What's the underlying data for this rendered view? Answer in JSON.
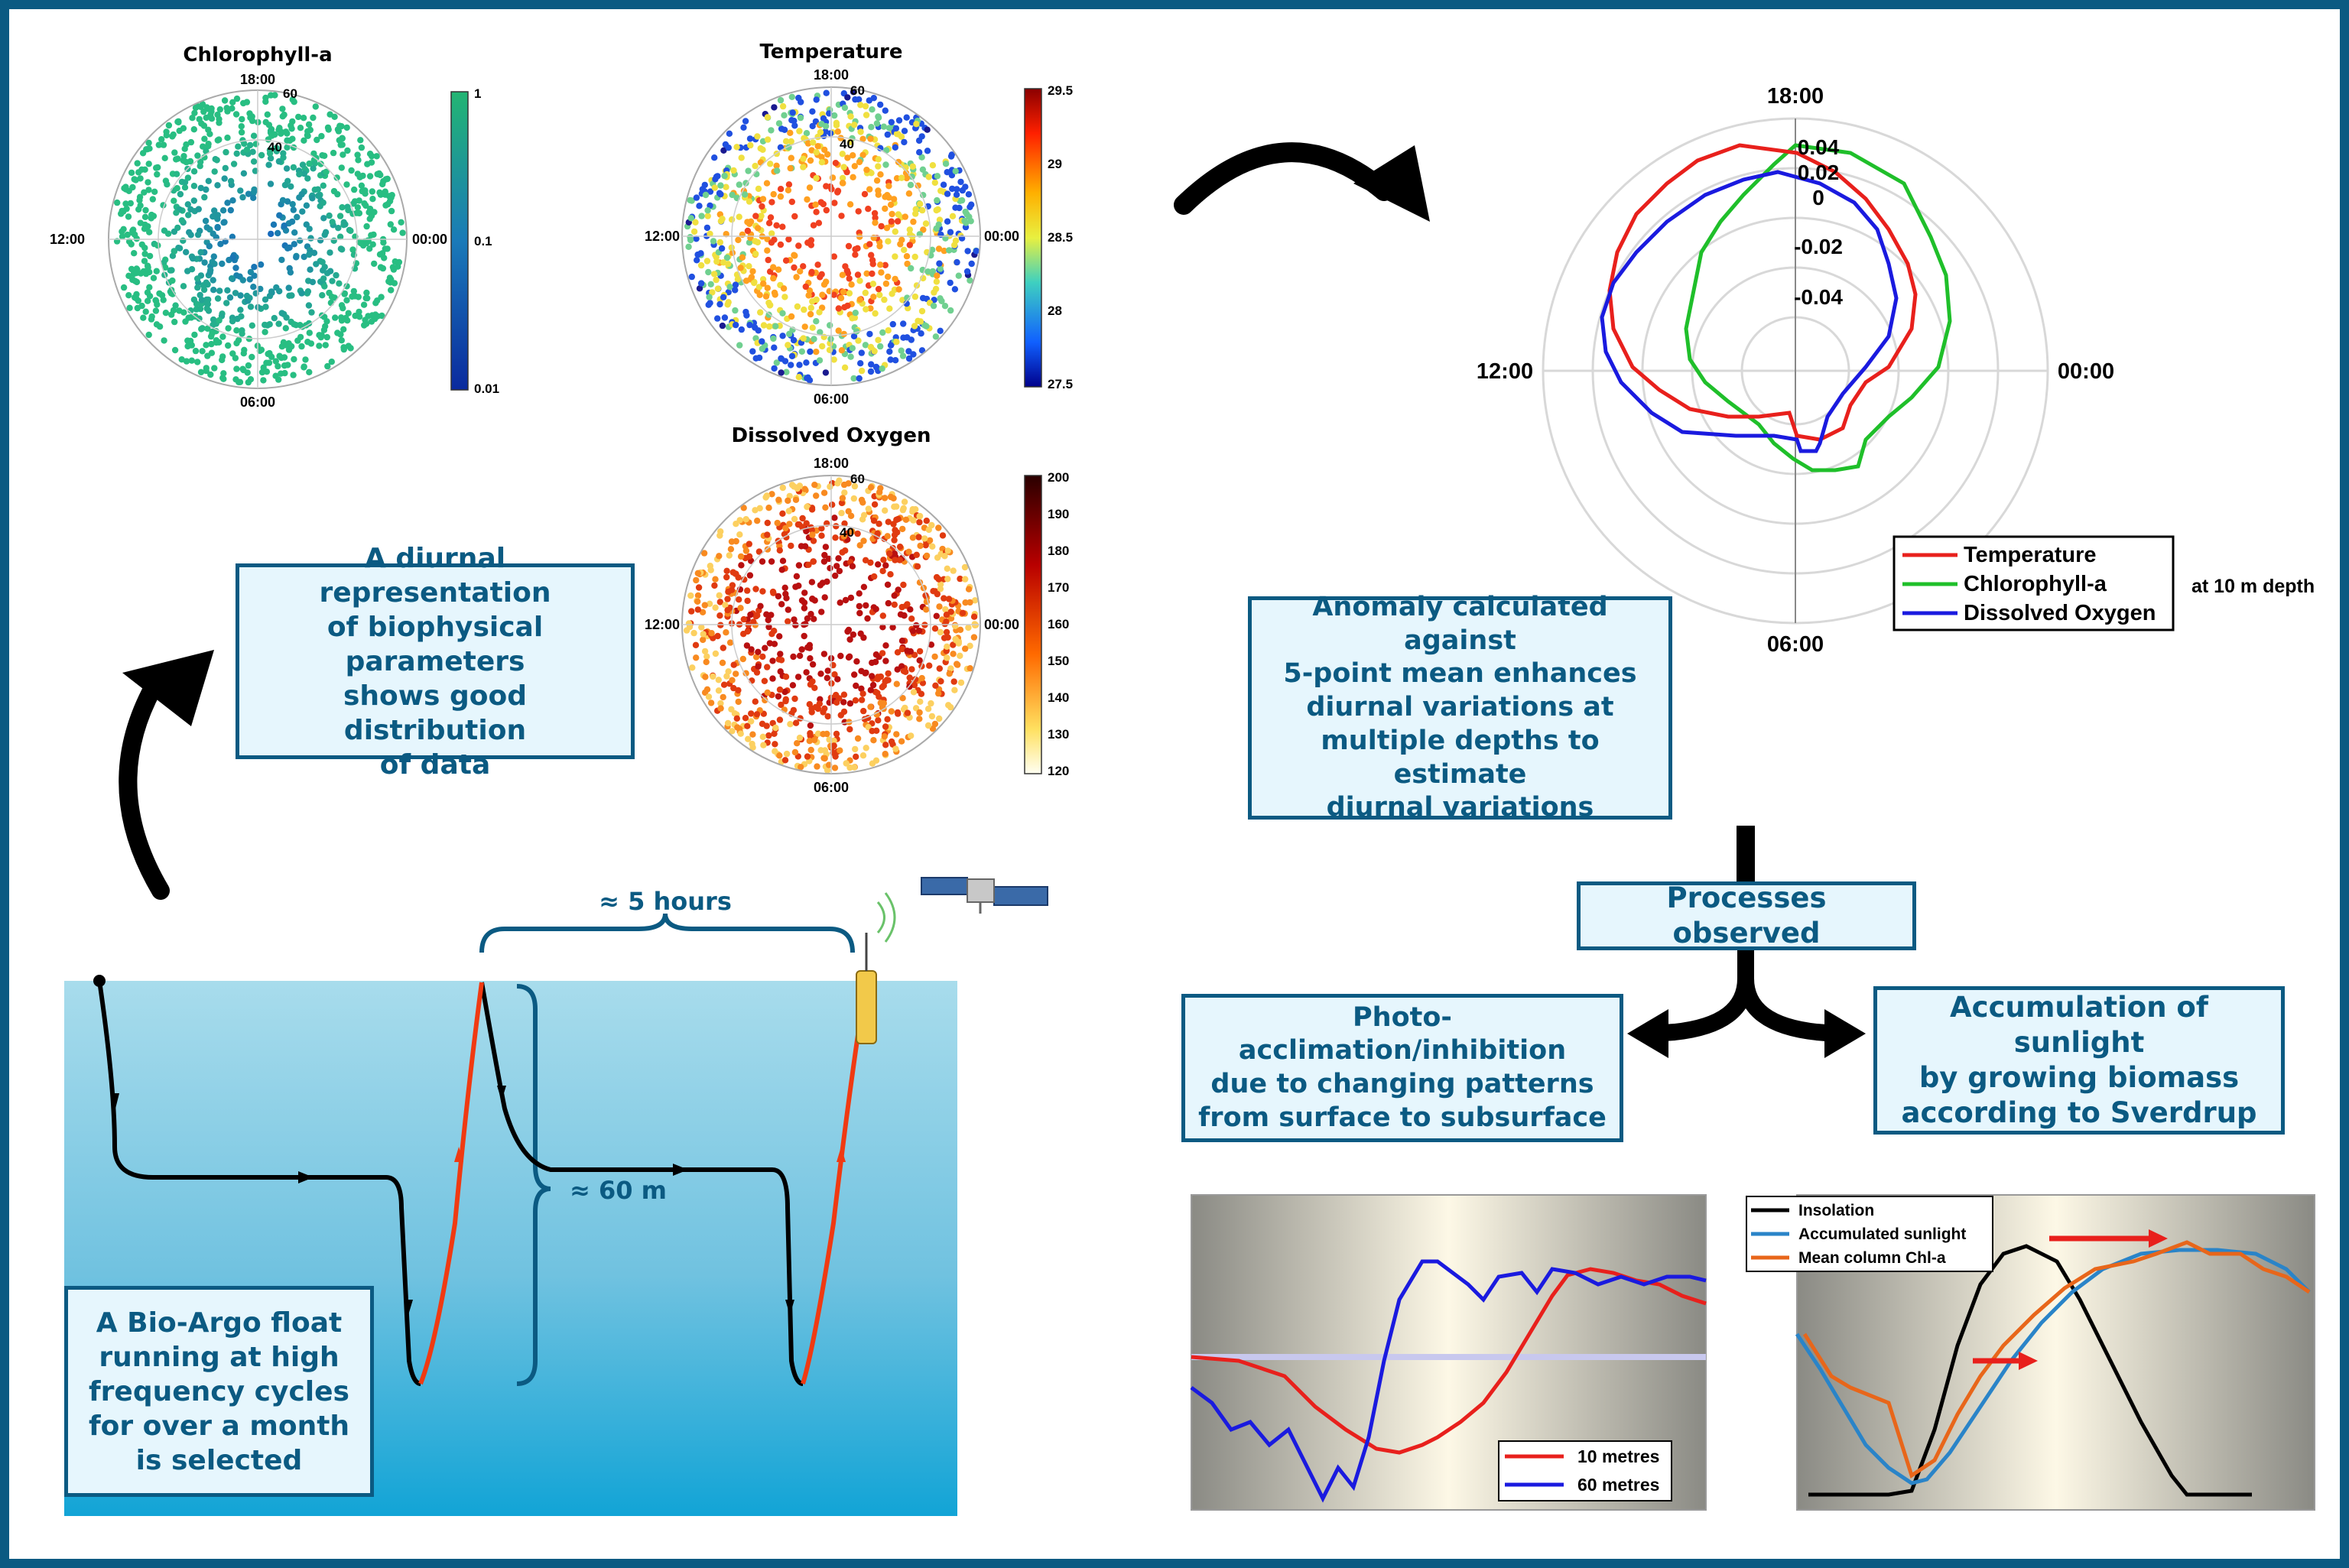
{
  "colors": {
    "frame_blue": "#0b5a82",
    "callout_bg": "#e6f6fd",
    "temperature": "#e8201c",
    "chlorophyll": "#1fbf2a",
    "oxygen": "#1a1adf",
    "float_descent": "#000000",
    "float_ascent": "#f03a12",
    "insolation": "#000000",
    "accumulated": "#2a84c8",
    "mean_chl": "#e8661a"
  },
  "polar_plots": {
    "chlorophyll": {
      "title": "Chlorophyll-a",
      "top": "18:00",
      "bottom": "06:00",
      "left": "12:00",
      "right": "00:00",
      "r_outer": "60",
      "r_inner": "40",
      "colorbar": [
        "1",
        "0.1",
        "0.01"
      ],
      "colormap": "blue-green"
    },
    "temperature": {
      "title": "Temperature",
      "top": "18:00",
      "bottom": "06:00",
      "left": "12:00",
      "right": "00:00",
      "r_outer": "60",
      "r_inner": "40",
      "colorbar": [
        "29.5",
        "29",
        "28.5",
        "28",
        "27.5"
      ],
      "colormap": "jet"
    },
    "oxygen": {
      "title": "Dissolved Oxygen",
      "top": "18:00",
      "bottom": "06:00",
      "left": "12:00",
      "right": "00:00",
      "r_outer": "60",
      "r_inner": "40",
      "colorbar": [
        "200",
        "190",
        "180",
        "170",
        "160",
        "150",
        "140",
        "130",
        "120"
      ],
      "colormap": "hot"
    }
  },
  "anomaly_plot": {
    "top": "18:00",
    "bottom": "06:00",
    "left": "12:00",
    "right": "00:00",
    "r_ticks": [
      "0.04",
      "0.02",
      "0",
      "-0.02",
      "-0.04"
    ],
    "legend": [
      "Temperature",
      "Chlorophyll-a",
      "Dissolved Oxygen"
    ],
    "depth_note": "at 10 m depth"
  },
  "callouts": {
    "diurnal": [
      "A diurnal representation",
      "of biophysical parameters",
      "shows good distribution",
      "of data"
    ],
    "anomaly": [
      "Anomaly calculated against",
      "5-point mean enhances",
      "diurnal variations at",
      "multiple depths to estimate",
      "diurnal variations"
    ],
    "processes": "Processes observed",
    "photo": [
      "Photo-acclimation/inhibition",
      "due to changing patterns",
      "from surface to subsurface"
    ],
    "accumulation": [
      "Accumulation of sunlight",
      "by growing biomass",
      "according to Sverdrup"
    ],
    "float": [
      "A Bio-Argo float",
      "running at high",
      "frequency cycles",
      "for over a month",
      "is selected"
    ]
  },
  "float_diagram": {
    "time_label": "≈ 5 hours",
    "depth_label": "≈ 60 m"
  },
  "line_chart_left": {
    "legend": [
      "10 metres",
      "60 metres"
    ]
  },
  "line_chart_right": {
    "legend": [
      "Insolation",
      "Accumulated sunlight",
      "Mean column Chl-a"
    ]
  }
}
